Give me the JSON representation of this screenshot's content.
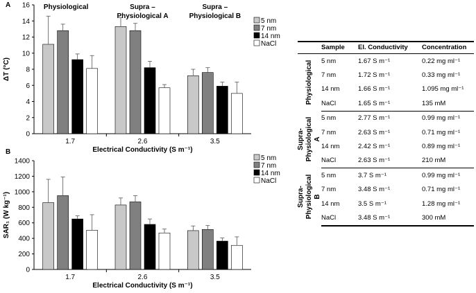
{
  "chart_data": [
    {
      "type": "bar",
      "panel_label": "A",
      "categories": [
        "1.7",
        "2.6",
        "3.5"
      ],
      "xlabel": "Electrical Conductivity (S m⁻¹)",
      "ylabel": "ΔT (°C)",
      "ylim": [
        0,
        16
      ],
      "yticks": [
        0,
        2,
        4,
        6,
        8,
        10,
        12,
        14,
        16
      ],
      "group_titles": [
        "Physiological",
        "Supra – Physiological A",
        "Supra – Physiological B"
      ],
      "legend": [
        "5 nm",
        "7 nm",
        "14 nm",
        "NaCl"
      ],
      "series": [
        {
          "name": "5 nm",
          "color": "#c8c8c8",
          "values": [
            11.1,
            13.3,
            7.2
          ],
          "errors": [
            3.5,
            1.1,
            0.8
          ]
        },
        {
          "name": "7 nm",
          "color": "#808080",
          "values": [
            12.8,
            12.8,
            7.6
          ],
          "errors": [
            0.8,
            0.9,
            0.6
          ]
        },
        {
          "name": "14 nm",
          "color": "#000000",
          "values": [
            9.2,
            8.2,
            5.9
          ],
          "errors": [
            0.7,
            0.8,
            0.5
          ]
        },
        {
          "name": "NaCl",
          "color": "#ffffff",
          "values": [
            8.1,
            5.7,
            5.0
          ],
          "errors": [
            1.6,
            0.4,
            1.4
          ]
        }
      ]
    },
    {
      "type": "bar",
      "panel_label": "B",
      "categories": [
        "1.7",
        "2.6",
        "3.5"
      ],
      "xlabel": "Electrical Conductivity (S m⁻¹)",
      "ylabel": "SAR₁ (W kg⁻¹)",
      "ylim": [
        0,
        1400
      ],
      "yticks": [
        0,
        200,
        400,
        600,
        800,
        1000,
        1200,
        1400
      ],
      "legend": [
        "5 nm",
        "7 nm",
        "14 nm",
        "NaCl"
      ],
      "series": [
        {
          "name": "5 nm",
          "color": "#c8c8c8",
          "values": [
            860,
            830,
            500
          ],
          "errors": [
            300,
            90,
            60
          ]
        },
        {
          "name": "7 nm",
          "color": "#808080",
          "values": [
            950,
            870,
            515
          ],
          "errors": [
            240,
            80,
            50
          ]
        },
        {
          "name": "14 nm",
          "color": "#000000",
          "values": [
            650,
            580,
            365
          ],
          "errors": [
            40,
            70,
            40
          ]
        },
        {
          "name": "NaCl",
          "color": "#ffffff",
          "values": [
            505,
            470,
            310
          ],
          "errors": [
            200,
            50,
            110
          ]
        }
      ]
    }
  ],
  "table": {
    "headers": [
      "Sample",
      "El. Conductivity",
      "Concentration"
    ],
    "groups": [
      {
        "name": "Physiological",
        "rows": [
          [
            "5 nm",
            "1.67 S m⁻¹",
            "0.22 mg ml⁻¹"
          ],
          [
            "7 nm",
            "1.72  S m⁻¹",
            "0.33 mg ml⁻¹"
          ],
          [
            "14 nm",
            "1.66  S m⁻¹",
            "1.095 mg ml⁻¹"
          ],
          [
            "NaCl",
            "1.65 S m⁻¹",
            "135 mM"
          ]
        ]
      },
      {
        "name": "Supra-Physiological A",
        "rows": [
          [
            "5 nm",
            "2.77  S m⁻¹",
            "0.99 mg ml⁻¹"
          ],
          [
            "7 nm",
            "2.63  S m⁻¹",
            "0.71 mg ml⁻¹"
          ],
          [
            "14 nm",
            "2.42  S  m⁻¹",
            "0.89 mg ml⁻¹"
          ],
          [
            "NaCl",
            "2.63  S m⁻¹",
            "210 mM"
          ]
        ]
      },
      {
        "name": "Supra-Physiological B",
        "rows": [
          [
            "5 nm",
            "3.7  S m⁻¹",
            "0.99 mg ml⁻¹"
          ],
          [
            "7 nm",
            "3.48 S m⁻¹",
            "0.71 mg ml⁻¹"
          ],
          [
            "14 nm",
            "3.5  S m⁻¹",
            "1.28 mg ml⁻¹"
          ],
          [
            "NaCl",
            "3.48  S m⁻¹",
            "300 mM"
          ]
        ]
      }
    ]
  }
}
